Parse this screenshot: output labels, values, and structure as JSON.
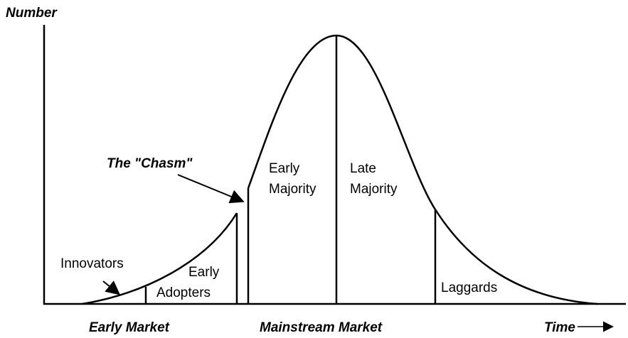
{
  "axis": {
    "y_label": "Number",
    "x_label": "Time"
  },
  "chasm_label": "The \"Chasm\"",
  "segments": [
    {
      "lines": [
        "Innovators"
      ]
    },
    {
      "lines": [
        "Early",
        "Adopters"
      ]
    },
    {
      "lines": [
        "Early",
        "Majority"
      ]
    },
    {
      "lines": [
        "Late",
        "Majority"
      ]
    },
    {
      "lines": [
        "Laggards"
      ]
    }
  ],
  "markets": [
    "Early Market",
    "Mainstream Market"
  ]
}
